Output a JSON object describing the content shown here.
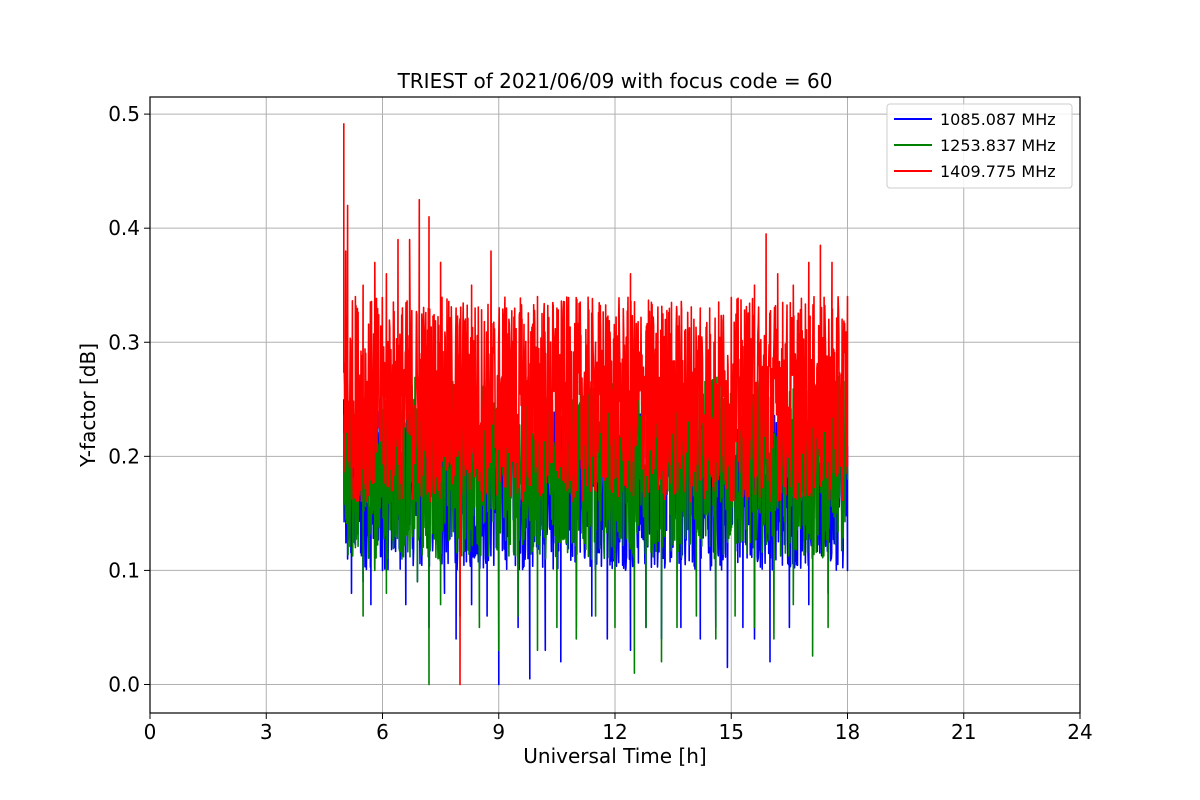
{
  "chart_data": {
    "type": "line",
    "title": "TRIEST of 2021/06/09 with focus code = 60",
    "xlabel": "Universal Time [h]",
    "ylabel": "Y-factor [dB]",
    "xlim": [
      0,
      24
    ],
    "ylim": [
      -0.025,
      0.515
    ],
    "xticks": [
      0,
      3,
      6,
      9,
      12,
      15,
      18,
      21,
      24
    ],
    "yticks": [
      0.0,
      0.1,
      0.2,
      0.3,
      0.4,
      0.5
    ],
    "xtick_labels": [
      "0",
      "3",
      "6",
      "9",
      "12",
      "15",
      "18",
      "21",
      "24"
    ],
    "ytick_labels": [
      "0.0",
      "0.1",
      "0.2",
      "0.3",
      "0.4",
      "0.5"
    ],
    "grid": true,
    "legend_position": "upper right",
    "x_range": [
      5.0,
      18.0
    ],
    "series": [
      {
        "name": "1085.087 MHz",
        "color": "#0000ff",
        "values": [
          [
            5.0,
            0.25
          ],
          [
            5.05,
            0.16
          ],
          [
            5.1,
            0.11
          ],
          [
            5.2,
            0.08
          ],
          [
            5.3,
            0.13
          ],
          [
            5.5,
            0.09
          ],
          [
            5.7,
            0.07
          ],
          [
            6.0,
            0.1
          ],
          [
            6.3,
            0.12
          ],
          [
            6.6,
            0.07
          ],
          [
            6.9,
            0.09
          ],
          [
            7.2,
            0.05
          ],
          [
            7.6,
            0.08
          ],
          [
            7.9,
            0.04
          ],
          [
            8.3,
            0.07
          ],
          [
            8.7,
            0.06
          ],
          [
            9.0,
            0.0
          ],
          [
            9.5,
            0.05
          ],
          [
            9.8,
            0.005
          ],
          [
            10.2,
            0.03
          ],
          [
            10.6,
            0.02
          ],
          [
            11.0,
            0.05
          ],
          [
            11.4,
            0.06
          ],
          [
            11.8,
            0.04
          ],
          [
            12.4,
            0.03
          ],
          [
            12.8,
            0.05
          ],
          [
            13.2,
            0.04
          ],
          [
            13.7,
            0.05
          ],
          [
            14.2,
            0.04
          ],
          [
            14.6,
            0.05
          ],
          [
            14.9,
            0.015
          ],
          [
            15.3,
            0.05
          ],
          [
            15.6,
            0.04
          ],
          [
            16.0,
            0.02
          ],
          [
            16.5,
            0.05
          ],
          [
            17.0,
            0.07
          ],
          [
            17.5,
            0.08
          ],
          [
            18.0,
            0.1
          ]
        ]
      },
      {
        "name": "1253.837 MHz",
        "color": "#008000",
        "values": [
          [
            5.0,
            0.22
          ],
          [
            5.05,
            0.2
          ],
          [
            5.1,
            0.17
          ],
          [
            5.3,
            0.12
          ],
          [
            5.5,
            0.06
          ],
          [
            5.8,
            0.1
          ],
          [
            6.1,
            0.08
          ],
          [
            6.5,
            0.11
          ],
          [
            6.9,
            0.09
          ],
          [
            7.2,
            0.0
          ],
          [
            7.5,
            0.07
          ],
          [
            8.0,
            0.06
          ],
          [
            8.5,
            0.05
          ],
          [
            9.0,
            0.03
          ],
          [
            9.5,
            0.06
          ],
          [
            10.0,
            0.03
          ],
          [
            10.5,
            0.05
          ],
          [
            11.0,
            0.04
          ],
          [
            11.5,
            0.06
          ],
          [
            12.0,
            0.05
          ],
          [
            12.5,
            0.01
          ],
          [
            12.8,
            0.05
          ],
          [
            13.2,
            0.02
          ],
          [
            13.6,
            0.05
          ],
          [
            14.1,
            0.06
          ],
          [
            14.6,
            0.04
          ],
          [
            15.1,
            0.06
          ],
          [
            15.6,
            0.05
          ],
          [
            16.1,
            0.04
          ],
          [
            16.6,
            0.07
          ],
          [
            17.1,
            0.025
          ],
          [
            17.5,
            0.05
          ],
          [
            18.0,
            0.18
          ]
        ]
      },
      {
        "name": "1409.775 MHz",
        "color": "#ff0000",
        "values": [
          [
            5.0,
            0.492
          ],
          [
            5.05,
            0.38
          ],
          [
            5.1,
            0.42
          ],
          [
            5.3,
            0.34
          ],
          [
            5.5,
            0.35
          ],
          [
            5.8,
            0.37
          ],
          [
            6.1,
            0.36
          ],
          [
            6.4,
            0.39
          ],
          [
            6.7,
            0.39
          ],
          [
            6.95,
            0.425
          ],
          [
            7.2,
            0.41
          ],
          [
            7.5,
            0.37
          ],
          [
            7.9,
            0.33
          ],
          [
            8.0,
            0.0
          ],
          [
            8.3,
            0.35
          ],
          [
            8.8,
            0.38
          ],
          [
            9.2,
            0.33
          ],
          [
            9.6,
            0.32
          ],
          [
            10.0,
            0.34
          ],
          [
            10.5,
            0.33
          ],
          [
            11.0,
            0.31
          ],
          [
            11.5,
            0.3
          ],
          [
            12.0,
            0.3
          ],
          [
            12.4,
            0.36
          ],
          [
            12.8,
            0.31
          ],
          [
            13.3,
            0.32
          ],
          [
            13.8,
            0.31
          ],
          [
            14.2,
            0.33
          ],
          [
            14.7,
            0.3
          ],
          [
            15.1,
            0.31
          ],
          [
            15.6,
            0.35
          ],
          [
            15.9,
            0.395
          ],
          [
            16.2,
            0.36
          ],
          [
            16.6,
            0.35
          ],
          [
            17.0,
            0.37
          ],
          [
            17.3,
            0.385
          ],
          [
            17.6,
            0.37
          ],
          [
            18.0,
            0.34
          ]
        ]
      }
    ]
  }
}
